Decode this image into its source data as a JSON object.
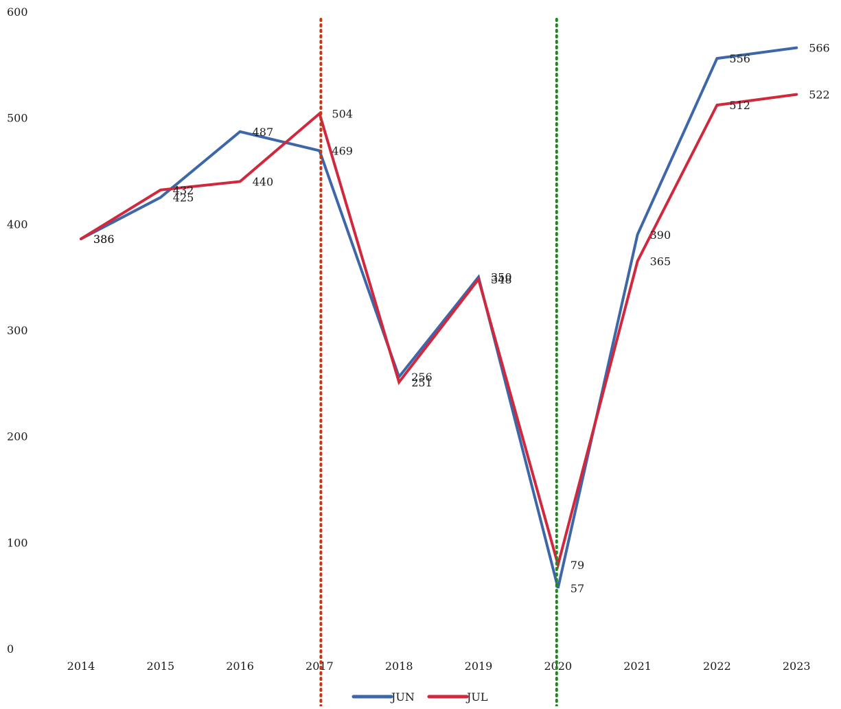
{
  "chart_data": {
    "type": "line",
    "categories": [
      "2014",
      "2015",
      "2016",
      "2017",
      "2018",
      "2019",
      "2020",
      "2021",
      "2022",
      "2023"
    ],
    "series": [
      {
        "name": "JUN",
        "color": "#3d67a8",
        "values": [
          386,
          425,
          487,
          469,
          256,
          350,
          57,
          390,
          556,
          566
        ]
      },
      {
        "name": "JUL",
        "color": "#d0283c",
        "values": [
          386,
          432,
          440,
          504,
          251,
          348,
          79,
          365,
          512,
          522
        ]
      }
    ],
    "yticks": [
      0,
      100,
      200,
      300,
      400,
      500,
      600
    ],
    "ylim": [
      0,
      600
    ],
    "grid": false,
    "legend_position": "bottom-center",
    "reference_lines": [
      {
        "x": "2017",
        "color": "#c0391b",
        "style": "dotted"
      },
      {
        "x": "2020",
        "color": "#1e8a1e",
        "style": "dotted"
      }
    ],
    "title": "",
    "xlabel": "",
    "ylabel": ""
  }
}
